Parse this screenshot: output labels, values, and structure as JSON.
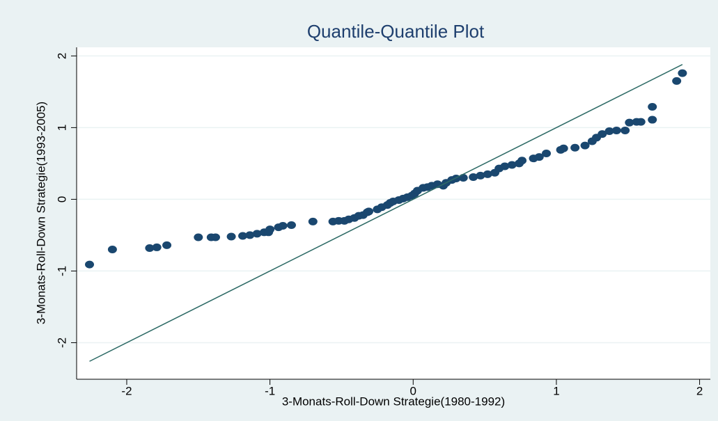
{
  "chart_data": {
    "type": "scatter",
    "title": "Quantile-Quantile Plot",
    "x_label": "3-Monats-Roll-Down Strategie(1980-1992)",
    "y_label": "3-Monats-Roll-Down Strategie(1993-2005)",
    "xlim": [
      -2.35,
      2.075
    ],
    "ylim": [
      -2.51,
      2.12
    ],
    "xticks": [
      -2,
      -1,
      0,
      1,
      2
    ],
    "yticks": [
      -2,
      -1,
      0,
      1,
      2
    ],
    "grid": true,
    "series": [
      {
        "type": "scatter",
        "color": "#1a476f",
        "x": [
          -2.26,
          -2.1,
          -1.84,
          -1.79,
          -1.72,
          -1.5,
          -1.41,
          -1.38,
          -1.27,
          -1.19,
          -1.14,
          -1.09,
          -1.04,
          -1.01,
          -1.0,
          -0.94,
          -0.91,
          -0.85,
          -0.7,
          -0.56,
          -0.52,
          -0.48,
          -0.45,
          -0.41,
          -0.38,
          -0.35,
          -0.32,
          -0.31,
          -0.25,
          -0.22,
          -0.18,
          -0.16,
          -0.14,
          -0.1,
          -0.07,
          -0.04,
          -0.01,
          0.01,
          0.03,
          0.07,
          0.1,
          0.13,
          0.17,
          0.21,
          0.23,
          0.27,
          0.3,
          0.35,
          0.42,
          0.47,
          0.52,
          0.57,
          0.6,
          0.64,
          0.69,
          0.74,
          0.76,
          0.84,
          0.88,
          0.93,
          1.03,
          1.05,
          1.13,
          1.2,
          1.25,
          1.28,
          1.32,
          1.37,
          1.42,
          1.48,
          1.51,
          1.56,
          1.59,
          1.67,
          1.67,
          1.84,
          1.88
        ],
        "values": [
          -0.91,
          -0.7,
          -0.68,
          -0.67,
          -0.64,
          -0.53,
          -0.53,
          -0.53,
          -0.52,
          -0.51,
          -0.5,
          -0.48,
          -0.46,
          -0.46,
          -0.42,
          -0.39,
          -0.37,
          -0.36,
          -0.31,
          -0.31,
          -0.3,
          -0.3,
          -0.28,
          -0.26,
          -0.23,
          -0.22,
          -0.18,
          -0.17,
          -0.14,
          -0.11,
          -0.08,
          -0.05,
          -0.03,
          -0.01,
          0.01,
          0.03,
          0.05,
          0.08,
          0.12,
          0.16,
          0.17,
          0.19,
          0.21,
          0.19,
          0.23,
          0.27,
          0.29,
          0.3,
          0.31,
          0.33,
          0.35,
          0.37,
          0.43,
          0.46,
          0.48,
          0.5,
          0.54,
          0.57,
          0.59,
          0.64,
          0.69,
          0.71,
          0.72,
          0.75,
          0.81,
          0.86,
          0.91,
          0.95,
          0.96,
          0.96,
          1.07,
          1.08,
          1.08,
          1.11,
          1.29,
          1.65,
          1.76
        ]
      },
      {
        "type": "line",
        "color": "#2e6b66",
        "x": [
          -2.26,
          1.88
        ],
        "values": [
          -2.26,
          1.88
        ]
      }
    ]
  }
}
